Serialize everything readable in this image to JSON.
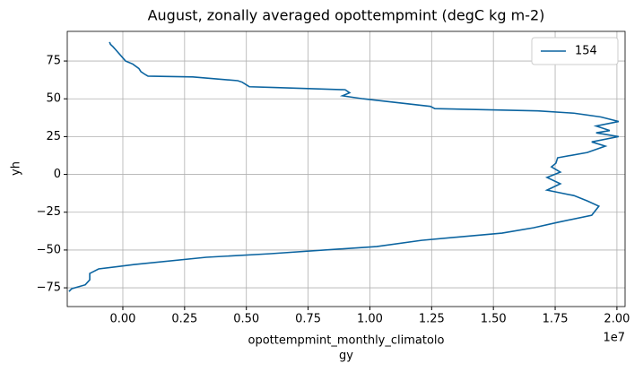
{
  "chart_data": {
    "type": "line",
    "title": "August, zonally averaged opottempmint (degC kg m-2)",
    "xlabel": [
      "opottempmint_monthly_climatolo",
      "gy"
    ],
    "ylabel": "yh",
    "x_offset_label": "1e7",
    "xlim": [
      -0.225,
      2.033
    ],
    "ylim": [
      -87.4,
      94.6
    ],
    "xticks": [
      {
        "value": 0,
        "label": "0.00"
      },
      0.25,
      {
        "value": 0.5,
        "label": "0.50"
      },
      0.75,
      {
        "value": 1,
        "label": "1.00"
      },
      1.25,
      {
        "value": 1.5,
        "label": "1.50"
      },
      1.75,
      {
        "value": 2,
        "label": "2.00"
      }
    ],
    "yticks": [
      {
        "value": -75,
        "label": "−75"
      },
      {
        "value": -50,
        "label": "−50"
      },
      {
        "value": -25,
        "label": "−25"
      },
      0,
      25,
      50,
      75
    ],
    "grid": true,
    "legend": "upper right",
    "series": [
      {
        "name": "154",
        "color": "#0b64a0",
        "x": [
          -0.054,
          -0.05,
          -0.04,
          0.011,
          0.04,
          0.065,
          0.073,
          0.091,
          0.102,
          0.283,
          0.465,
          0.483,
          0.512,
          0.61,
          0.9,
          0.918,
          0.889,
          0.973,
          1.245,
          1.263,
          1.68,
          1.826,
          1.935,
          2.007,
          1.916,
          1.971,
          1.916,
          2.007,
          1.898,
          1.953,
          1.88,
          1.76,
          1.753,
          1.735,
          1.771,
          1.717,
          1.771,
          1.717,
          1.826,
          1.88,
          1.927,
          1.898,
          1.76,
          1.662,
          1.535,
          1.209,
          1.027,
          0.592,
          0.338,
          0.047,
          -0.098,
          -0.134,
          -0.134,
          -0.152,
          -0.207,
          -0.218
        ],
        "values": [
          87.5,
          86,
          84.5,
          75,
          73,
          70,
          68,
          66,
          65,
          64.5,
          62,
          61,
          58,
          57.5,
          56,
          54,
          52,
          50,
          45,
          43.5,
          42,
          40.5,
          38,
          35,
          32,
          29,
          27.5,
          25,
          21.5,
          18.7,
          14.5,
          11,
          7.4,
          5,
          1.5,
          -2,
          -6.2,
          -10.4,
          -14,
          -17.5,
          -21,
          -27,
          -31.7,
          -35.3,
          -38.8,
          -43.6,
          -47.7,
          -52.5,
          -54.8,
          -59.6,
          -62.5,
          -65.5,
          -69.7,
          -73,
          -75.6,
          -77.4
        ]
      }
    ]
  }
}
